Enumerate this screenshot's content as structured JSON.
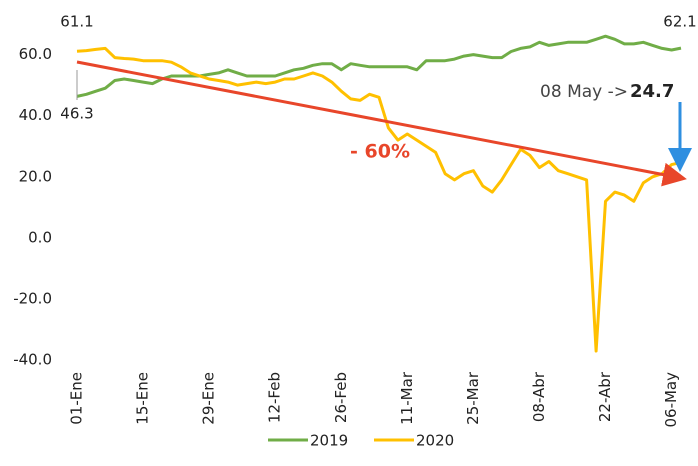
{
  "chart_data": {
    "type": "line",
    "categories": [
      "01-Ene",
      null,
      null,
      null,
      null,
      null,
      null,
      "15-Ene",
      null,
      null,
      null,
      null,
      null,
      null,
      "29-Ene",
      null,
      null,
      null,
      null,
      null,
      null,
      "12-Feb",
      null,
      null,
      null,
      null,
      null,
      null,
      "26-Feb",
      null,
      null,
      null,
      null,
      null,
      null,
      "11-Mar",
      null,
      null,
      null,
      null,
      null,
      null,
      "25-Mar",
      null,
      null,
      null,
      null,
      null,
      null,
      "08-Abr",
      null,
      null,
      null,
      null,
      null,
      null,
      "22-Abr",
      null,
      null,
      null,
      null,
      null,
      null,
      "06-May",
      null
    ],
    "series": [
      {
        "name": "2019",
        "color": "#70ad47",
        "values": [
          46.3,
          47,
          48,
          49,
          51.5,
          52,
          51.5,
          51,
          50.5,
          52,
          53,
          53,
          53,
          53,
          53.5,
          54,
          55,
          54,
          53,
          53,
          53,
          53,
          54,
          55,
          55.5,
          56.5,
          57,
          57,
          55,
          57,
          56.5,
          56,
          56,
          56,
          56,
          56,
          55,
          58,
          58,
          58,
          58.5,
          59.5,
          60,
          59.5,
          59,
          59,
          61,
          62,
          62.5,
          64,
          63,
          63.5,
          64,
          64,
          64,
          65,
          66,
          65,
          63.5,
          63.5,
          64,
          63,
          62,
          61.5,
          62.1
        ]
      },
      {
        "name": "2020",
        "color": "#ffc000",
        "values": [
          61.1,
          61.3,
          61.7,
          62,
          59,
          58.7,
          58.5,
          58,
          58,
          58,
          57.5,
          56,
          54,
          53,
          52,
          51.5,
          51,
          50,
          50.5,
          51,
          50.5,
          51,
          52,
          52,
          53,
          54,
          53,
          51,
          48,
          45.5,
          45,
          47,
          46,
          36,
          32,
          34,
          32,
          30,
          28,
          21,
          19,
          21,
          22,
          17,
          15,
          19,
          24,
          29,
          27,
          23,
          25,
          22,
          21,
          20,
          19,
          -37,
          12,
          15,
          14,
          12,
          18,
          20,
          21,
          24,
          24.7
        ]
      }
    ],
    "ylim": [
      -40.6,
      70
    ],
    "yticks": [
      {
        "value": -40,
        "label": "-40.0"
      },
      {
        "value": -20,
        "label": "-20.0"
      },
      {
        "value": 0,
        "label": "0.0"
      },
      {
        "value": 20,
        "label": "20.0"
      },
      {
        "value": 40,
        "label": "40.0"
      },
      {
        "value": 60,
        "label": "60.0"
      }
    ],
    "grid": false,
    "legend": "bottom",
    "annotations": [
      "08 May ->",
      "- 60%"
    ]
  }
}
